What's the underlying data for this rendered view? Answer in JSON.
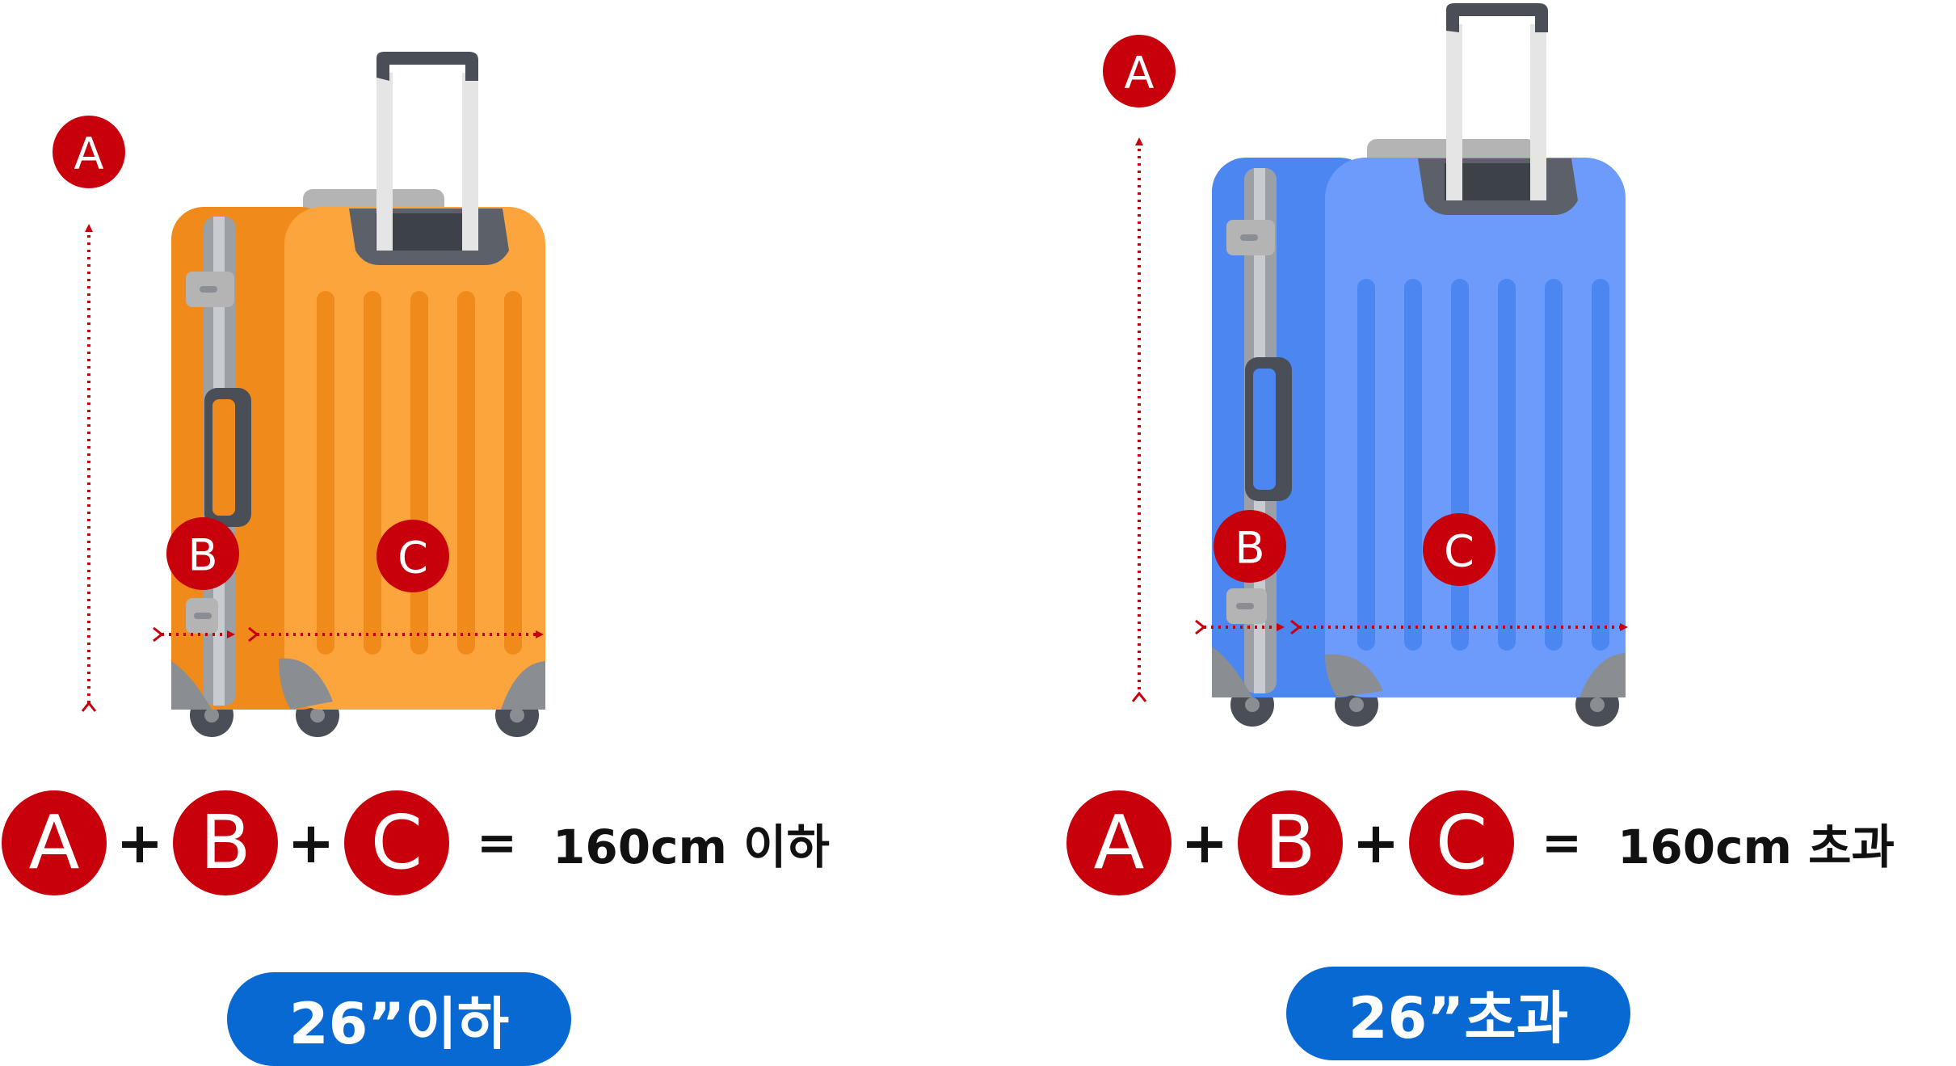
{
  "colors": {
    "marker_red": "#c8000b",
    "pill_blue": "#0969d2",
    "suitcase_small": "#fba53c",
    "suitcase_small_dark": "#f08b1b",
    "suitcase_large": "#6c9bfb",
    "suitcase_large_dark": "#4b86f1"
  },
  "markers": {
    "a": "A",
    "b": "B",
    "c": "C"
  },
  "formula": {
    "plus": "+",
    "equals": "="
  },
  "left": {
    "result": "160cm 이하",
    "pill": "26”이하"
  },
  "right": {
    "result": "160cm 초과",
    "pill": "26”초과"
  }
}
